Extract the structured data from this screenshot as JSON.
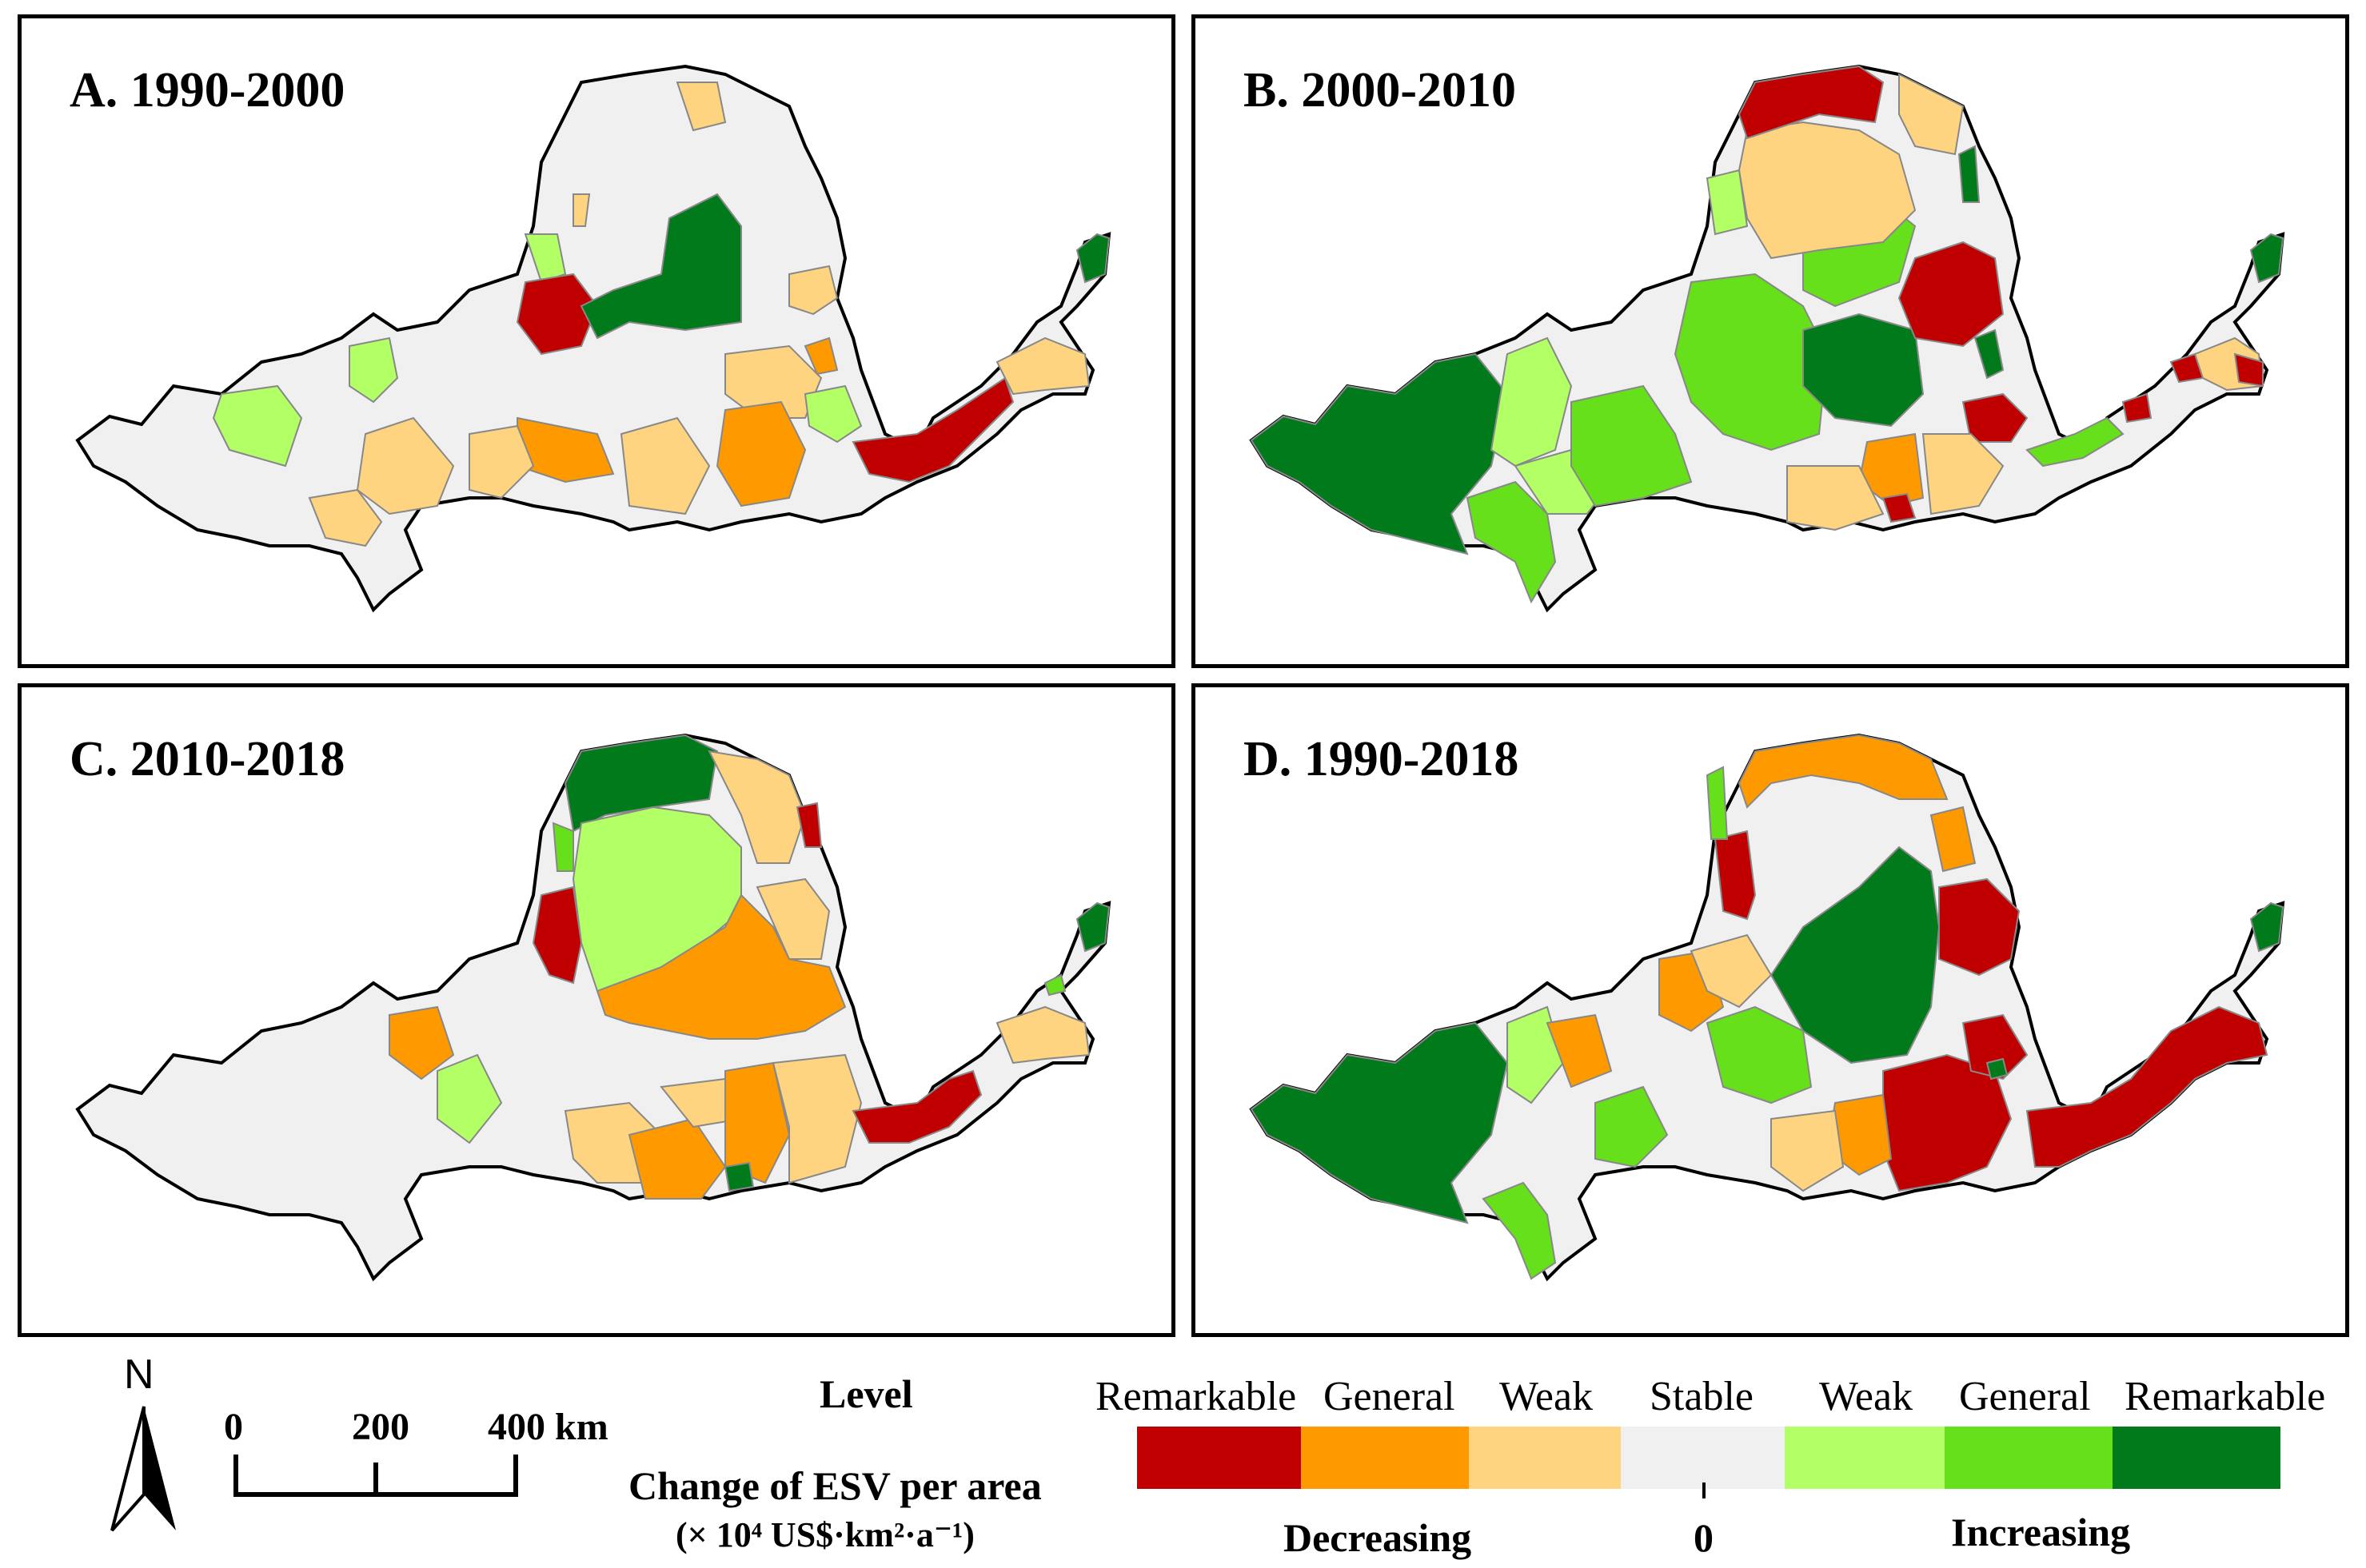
{
  "panels": [
    {
      "id": "A",
      "title": "A. 1990-2000"
    },
    {
      "id": "B",
      "title": "B. 2000-2010"
    },
    {
      "id": "C",
      "title": "C. 2010-2018"
    },
    {
      "id": "D",
      "title": "D. 1990-2018"
    }
  ],
  "legend": {
    "north": "N",
    "scale": {
      "labels": [
        "0",
        "200",
        "400 km"
      ]
    },
    "level_title": "Level",
    "esv_title": "Change of ESV per area",
    "unit": "(× 10⁴ US$·km²·a⁻¹)",
    "levels": [
      {
        "label": "Remarkable",
        "color": "#c00000"
      },
      {
        "label": "General",
        "color": "#ff9900"
      },
      {
        "label": "Weak",
        "color": "#ffd480"
      },
      {
        "label": "Stable",
        "color": "#f0f0f0"
      },
      {
        "label": "Weak",
        "color": "#b3ff66"
      },
      {
        "label": "General",
        "color": "#66e01a"
      },
      {
        "label": "Remarkable",
        "color": "#007a1a"
      }
    ],
    "decreasing": "Decreasing",
    "zero": "0",
    "increasing": "Increasing"
  },
  "colors": {
    "stable": "#f0f0f0",
    "border": "#000000",
    "inner_border": "#888888"
  }
}
